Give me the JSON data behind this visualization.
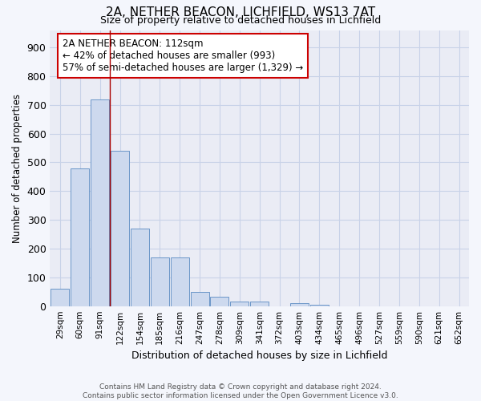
{
  "title_line1": "2A, NETHER BEACON, LICHFIELD, WS13 7AT",
  "title_line2": "Size of property relative to detached houses in Lichfield",
  "xlabel": "Distribution of detached houses by size in Lichfield",
  "ylabel": "Number of detached properties",
  "categories": [
    "29sqm",
    "60sqm",
    "91sqm",
    "122sqm",
    "154sqm",
    "185sqm",
    "216sqm",
    "247sqm",
    "278sqm",
    "309sqm",
    "341sqm",
    "372sqm",
    "403sqm",
    "434sqm",
    "465sqm",
    "496sqm",
    "527sqm",
    "559sqm",
    "590sqm",
    "621sqm",
    "652sqm"
  ],
  "values": [
    60,
    480,
    720,
    540,
    270,
    170,
    170,
    48,
    33,
    15,
    15,
    0,
    10,
    5,
    0,
    0,
    0,
    0,
    0,
    0,
    0
  ],
  "bar_color": "#cdd9ee",
  "bar_edge_color": "#6b96c8",
  "grid_color": "#c8d2e8",
  "annotation_text": "2A NETHER BEACON: 112sqm\n← 42% of detached houses are smaller (993)\n57% of semi-detached houses are larger (1,329) →",
  "annotation_box_color": "#ffffff",
  "annotation_box_edge_color": "#cc0000",
  "vline_x": 2.5,
  "vline_color": "#aa0000",
  "ylim": [
    0,
    960
  ],
  "yticks": [
    0,
    100,
    200,
    300,
    400,
    500,
    600,
    700,
    800,
    900
  ],
  "footnote": "Contains HM Land Registry data © Crown copyright and database right 2024.\nContains public sector information licensed under the Open Government Licence v3.0.",
  "background_color": "#f4f6fc",
  "plot_background_color": "#eaecf5"
}
